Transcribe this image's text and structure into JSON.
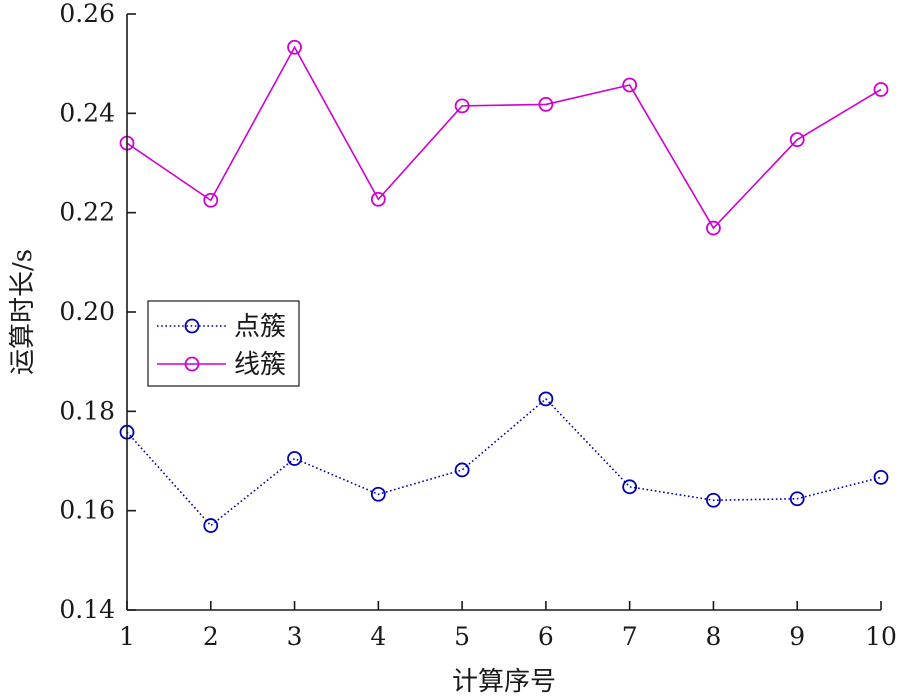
{
  "chart_data": {
    "type": "line",
    "title": "",
    "xlabel": "计算序号",
    "ylabel": "运算时长/s",
    "x": [
      1,
      2,
      3,
      4,
      5,
      6,
      7,
      8,
      9,
      10
    ],
    "x_ticks": [
      "1",
      "2",
      "3",
      "4",
      "5",
      "6",
      "7",
      "8",
      "9",
      "10"
    ],
    "xlim": [
      1,
      10
    ],
    "ylim": [
      0.14,
      0.26
    ],
    "y_ticks": [
      "0.14",
      "0.16",
      "0.18",
      "0.20",
      "0.22",
      "0.24",
      "0.26"
    ],
    "grid": false,
    "legend_position": "left",
    "series": [
      {
        "name": "点簇",
        "color": "#0000b4",
        "line_style": "dotted",
        "marker": "circle",
        "values": [
          0.1758,
          0.157,
          0.1705,
          0.1633,
          0.1682,
          0.1825,
          0.1648,
          0.1621,
          0.1624,
          0.1667
        ]
      },
      {
        "name": "线簇",
        "color": "#d000d0",
        "line_style": "solid",
        "marker": "circle",
        "values": [
          0.234,
          0.2225,
          0.2533,
          0.2227,
          0.2415,
          0.2418,
          0.2457,
          0.2169,
          0.2347,
          0.2448
        ]
      }
    ]
  }
}
